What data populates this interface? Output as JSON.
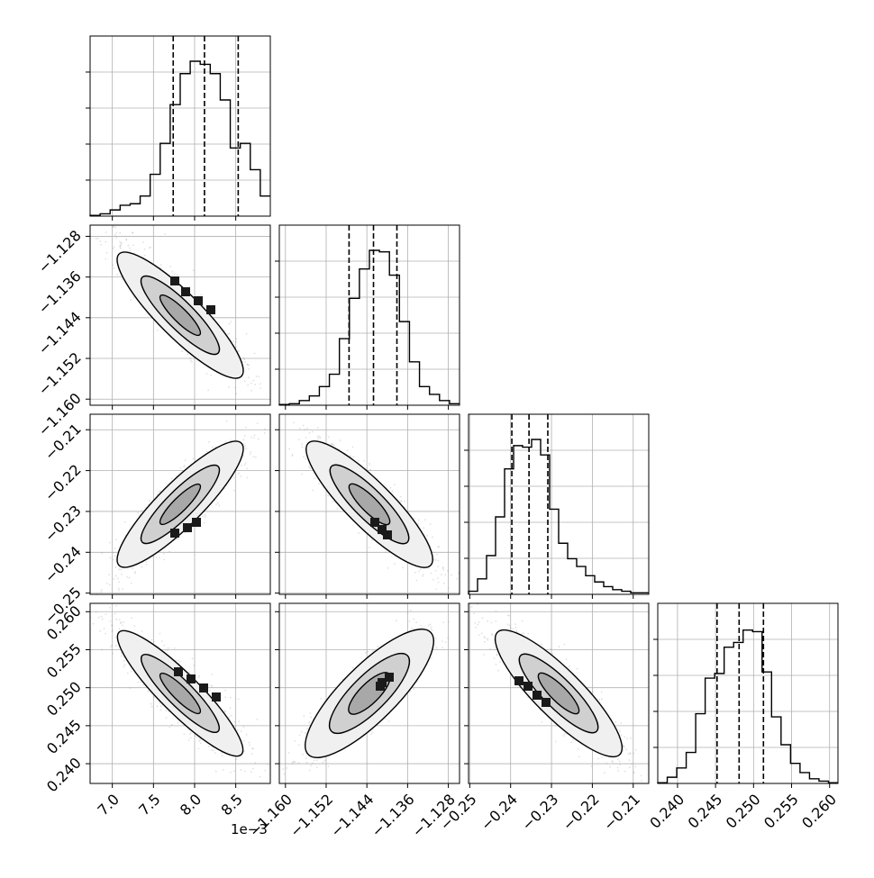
{
  "figure": {
    "background": "#ffffff",
    "grid": true,
    "offset_label": "1e−3"
  },
  "chart_data": {
    "type": "corner",
    "title": "",
    "params": [
      {
        "range": [
          6.73,
          8.92
        ],
        "ticks": [
          7.0,
          7.5,
          8.0,
          8.5
        ],
        "tick_labels": [
          "7.0",
          "7.5",
          "8.0",
          "8.5"
        ],
        "quantiles": [
          7.74,
          8.12,
          8.53
        ]
      },
      {
        "range": [
          -1.1612,
          -1.1258
        ],
        "ticks": [
          -1.16,
          -1.152,
          -1.144,
          -1.136,
          -1.128
        ],
        "tick_labels": [
          "−1.160",
          "−1.152",
          "−1.144",
          "−1.136",
          "−1.128"
        ],
        "quantiles": [
          -1.1475,
          -1.1427,
          -1.1381
        ]
      },
      {
        "range": [
          -0.2503,
          -0.2062
        ],
        "ticks": [
          -0.25,
          -0.24,
          -0.23,
          -0.22,
          -0.21
        ],
        "tick_labels": [
          "−0.25",
          "−0.24",
          "−0.23",
          "−0.22",
          "−0.21"
        ],
        "quantiles": [
          -0.2397,
          -0.2355,
          -0.2309
        ]
      },
      {
        "range": [
          0.2374,
          0.2611
        ],
        "ticks": [
          0.24,
          0.245,
          0.25,
          0.255,
          0.26
        ],
        "tick_labels": [
          "0.240",
          "0.245",
          "0.250",
          "0.255",
          "0.260"
        ],
        "quantiles": [
          0.2452,
          0.2481,
          0.2513
        ]
      }
    ],
    "histograms": [
      [
        0.005,
        0.015,
        0.04,
        0.07,
        0.08,
        0.13,
        0.27,
        0.47,
        0.72,
        0.92,
        1.0,
        0.98,
        0.92,
        0.75,
        0.44,
        0.47,
        0.3,
        0.13
      ],
      [
        0.005,
        0.01,
        0.03,
        0.06,
        0.12,
        0.2,
        0.43,
        0.69,
        0.88,
        1.0,
        0.99,
        0.84,
        0.54,
        0.28,
        0.12,
        0.07,
        0.03,
        0.01
      ],
      [
        0.02,
        0.1,
        0.25,
        0.5,
        0.81,
        0.96,
        0.95,
        1.0,
        0.9,
        0.55,
        0.33,
        0.23,
        0.18,
        0.12,
        0.08,
        0.05,
        0.03,
        0.02,
        0.01,
        0.01
      ],
      [
        0.005,
        0.04,
        0.1,
        0.2,
        0.45,
        0.68,
        0.71,
        0.88,
        0.91,
        0.99,
        0.98,
        0.72,
        0.43,
        0.25,
        0.13,
        0.07,
        0.03,
        0.015,
        0.005
      ]
    ]
  }
}
